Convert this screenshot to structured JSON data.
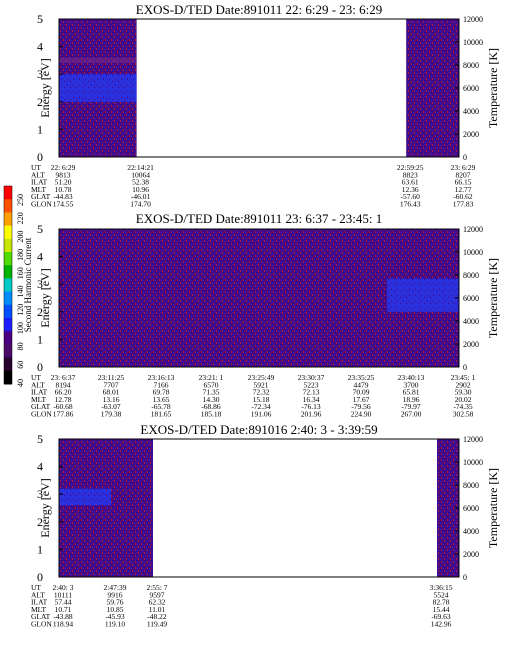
{
  "colorbar": {
    "label": "Second Harmonic Current",
    "ticks": [
      "40",
      "60",
      "80",
      "100",
      "120",
      "140",
      "160",
      "180",
      "200",
      "220",
      "250"
    ],
    "colors": [
      "#000000",
      "#2a0030",
      "#4a0a6a",
      "#4b0082",
      "#1c1cff",
      "#0050ff",
      "#008cff",
      "#00c8c8",
      "#00b400",
      "#50dc00",
      "#c8e600",
      "#ffff00",
      "#ffa000",
      "#ff5000",
      "#ff0000"
    ]
  },
  "chart_data": [
    {
      "type": "heatmap",
      "title": "EXOS-D/TED   Date:891011  22: 6:29 - 23: 6:29",
      "ylabel": "Energy [eV]",
      "ylabel_right": "Temperature [K]",
      "ylim": [
        0,
        5
      ],
      "ylim_right": [
        0,
        12000
      ],
      "yticks": [
        "0",
        "1",
        "2",
        "3",
        "4",
        "5"
      ],
      "yticks_right": [
        "0",
        "2000",
        "4000",
        "6000",
        "8000",
        "10000",
        "12000"
      ],
      "data_segments": [
        {
          "from_col": 0,
          "to_col": 0.194,
          "bright_band": [
            2.0,
            3.0
          ],
          "peak_band": [
            3.4,
            3.6
          ]
        },
        {
          "from_col": 0.868,
          "to_col": 1.0
        }
      ],
      "table": {
        "row_labels": [
          "UT",
          "ALT",
          "ILAT",
          "MLT",
          "GLAT",
          "GLON"
        ],
        "columns": [
          {
            "pos": 0,
            "values": [
              "22: 6:29",
              "9813",
              "51.20",
              "10.78",
              "-44.83",
              "174.55"
            ]
          },
          {
            "pos": 0.194,
            "values": [
              "22:14:21",
              "10064",
              "52.38",
              "10.96",
              "-46.01",
              "174.70"
            ]
          },
          {
            "pos": 0.868,
            "values": [
              "22:59:25",
              "8823",
              "63.61",
              "12.36",
              "-57.60",
              "176.43"
            ]
          },
          {
            "pos": 1.0,
            "values": [
              "23: 6:29",
              "8207",
              "66.15",
              "12.77",
              "-60.62",
              "177.83"
            ]
          }
        ]
      }
    },
    {
      "type": "heatmap",
      "title": "EXOS-D/TED   Date:891011  23: 6:37 - 23:45: 1",
      "ylabel": "Energy [eV]",
      "ylabel_right": "Temperature [K]",
      "ylim": [
        0,
        5
      ],
      "ylim_right": [
        0,
        12000
      ],
      "yticks": [
        "0",
        "1",
        "2",
        "3",
        "4",
        "5"
      ],
      "yticks_right": [
        "0",
        "2000",
        "4000",
        "6000",
        "8000",
        "10000",
        "12000"
      ],
      "data_segments": [
        {
          "from_col": 0,
          "to_col": 1.0,
          "blue_region": {
            "from_col": 0.82,
            "band": [
              2.0,
              3.2
            ]
          }
        }
      ],
      "table": {
        "row_labels": [
          "UT",
          "ALT",
          "ILAT",
          "MLT",
          "GLAT",
          "GLON"
        ],
        "columns": [
          {
            "pos": 0,
            "values": [
              "23: 6:37",
              "8194",
              "66.20",
              "12.78",
              "-60.68",
              "177.86"
            ]
          },
          {
            "pos": 0.12,
            "values": [
              "23:11:25",
              "7707",
              "68.01",
              "13.16",
              "-63.07",
              "179.38"
            ]
          },
          {
            "pos": 0.245,
            "values": [
              "23:16:13",
              "7166",
              "69.78",
              "13.65",
              "-65.78",
              "181.65"
            ]
          },
          {
            "pos": 0.37,
            "values": [
              "23:21: 1",
              "6570",
              "71.35",
              "14.30",
              "-68.86",
              "185.18"
            ]
          },
          {
            "pos": 0.495,
            "values": [
              "23:25:49",
              "5921",
              "72.32",
              "15.18",
              "-72.34",
              "191.06"
            ]
          },
          {
            "pos": 0.62,
            "values": [
              "23:30:37",
              "5223",
              "72.13",
              "16.34",
              "-76.13",
              "201.96"
            ]
          },
          {
            "pos": 0.745,
            "values": [
              "23:35:25",
              "4479",
              "70.09",
              "17.67",
              "-79.56",
              "224.90"
            ]
          },
          {
            "pos": 0.87,
            "values": [
              "23:40:13",
              "3700",
              "65.81",
              "18.96",
              "-79.97",
              "267.00"
            ]
          },
          {
            "pos": 1.0,
            "values": [
              "23:45: 1",
              "2902",
              "59.30",
              "20.02",
              "-74.35",
              "302.58"
            ]
          }
        ]
      }
    },
    {
      "type": "heatmap",
      "title": "EXOS-D/TED   Date:891016  2:40: 3 - 3:39:59",
      "ylabel": "Energy [eV]",
      "ylabel_right": "Temperature [K]",
      "ylim": [
        0,
        5
      ],
      "ylim_right": [
        0,
        12000
      ],
      "yticks": [
        "0",
        "1",
        "2",
        "3",
        "4",
        "5"
      ],
      "yticks_right": [
        "0",
        "2000",
        "4000",
        "6000",
        "8000",
        "10000",
        "12000"
      ],
      "data_segments": [
        {
          "from_col": 0,
          "to_col": 0.235,
          "blue_region": {
            "from_col": 0.0,
            "to_col": 0.13,
            "band": [
              2.6,
              3.2
            ]
          }
        },
        {
          "from_col": 0.945,
          "to_col": 1.0
        }
      ],
      "table": {
        "row_labels": [
          "UT",
          "ALT",
          "ILAT",
          "MLT",
          "GLAT",
          "GLON"
        ],
        "columns": [
          {
            "pos": 0,
            "values": [
              "2:40: 3",
              "10111",
              "57.44",
              "10.71",
              "-43.88",
              "118.94"
            ]
          },
          {
            "pos": 0.13,
            "values": [
              "2:47:39",
              "9916",
              "59.76",
              "10.85",
              "-45.93",
              "119.10"
            ]
          },
          {
            "pos": 0.235,
            "values": [
              "2:55: 7",
              "9597",
              "62.32",
              "11.01",
              "-48.22",
              "119.49"
            ]
          },
          {
            "pos": 0.945,
            "values": [
              "3:36:15",
              "5524",
              "82.78",
              "15.44",
              "-69.63",
              "142.96"
            ]
          }
        ]
      }
    }
  ]
}
